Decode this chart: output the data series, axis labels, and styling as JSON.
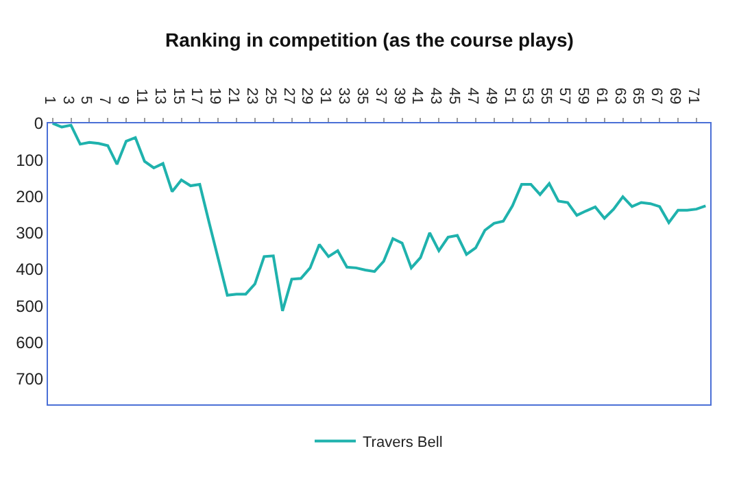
{
  "chart_data": {
    "type": "line",
    "title": "Ranking in competition (as the course plays)",
    "categories": [
      "1",
      null,
      "3",
      null,
      "5",
      null,
      "7",
      null,
      "9",
      null,
      "11",
      null,
      "13",
      null,
      "15",
      null,
      "17",
      null,
      "19",
      null,
      "21",
      null,
      "23",
      null,
      "25",
      null,
      "27",
      null,
      "29",
      null,
      "31",
      null,
      "33",
      null,
      "35",
      null,
      "37",
      null,
      "39",
      null,
      "41",
      null,
      "43",
      null,
      "45",
      null,
      "47",
      null,
      "49",
      null,
      "51",
      null,
      "53",
      null,
      "55",
      null,
      "57",
      null,
      "59",
      null,
      "61",
      null,
      "63",
      null,
      "65",
      null,
      "67",
      null,
      "69",
      null,
      "71",
      null
    ],
    "series": [
      {
        "name": "Travers Bell",
        "color": "#1fb2ad",
        "values": [
          0,
          10,
          5,
          57,
          52,
          55,
          61,
          112,
          49,
          39,
          104,
          122,
          110,
          187,
          155,
          171,
          167,
          270,
          370,
          471,
          468,
          468,
          440,
          365,
          363,
          514,
          427,
          425,
          396,
          332,
          365,
          349,
          394,
          396,
          402,
          406,
          378,
          316,
          328,
          396,
          368,
          300,
          349,
          312,
          307,
          359,
          341,
          293,
          274,
          268,
          226,
          167,
          167,
          195,
          165,
          213,
          217,
          252,
          240,
          229,
          260,
          235,
          201,
          228,
          217,
          220,
          228,
          272,
          238,
          238,
          235,
          226
        ]
      }
    ],
    "ylim": [
      770,
      0
    ],
    "yticks": [
      0,
      100,
      200,
      300,
      400,
      500,
      600,
      700
    ],
    "grid": false,
    "legend": "bottom",
    "marker": "none",
    "line_style": "solid"
  }
}
